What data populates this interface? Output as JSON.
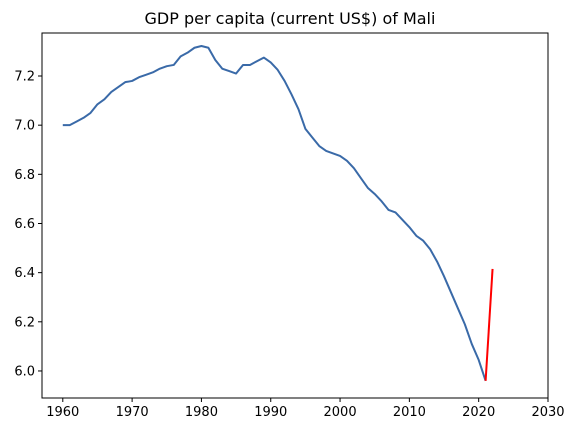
{
  "chart_data": {
    "type": "line",
    "title": "GDP per capita (current US$) of Mali",
    "xlabel": "",
    "ylabel": "",
    "xlim": [
      1957,
      2030
    ],
    "ylim": [
      5.89,
      7.375
    ],
    "x_ticks": [
      1960,
      1970,
      1980,
      1990,
      2000,
      2010,
      2020,
      2030
    ],
    "y_ticks": [
      6.0,
      6.2,
      6.4,
      6.6,
      6.8,
      7.0,
      7.2
    ],
    "x_tick_labels": [
      "1960",
      "1970",
      "1980",
      "1990",
      "2000",
      "2010",
      "2020",
      "2030"
    ],
    "y_tick_labels": [
      "6.0",
      "6.2",
      "6.4",
      "6.6",
      "6.8",
      "7.0",
      "7.2"
    ],
    "grid": false,
    "legend": "none",
    "series": [
      {
        "color": "#3a6aa8",
        "points": [
          [
            1960,
            7.0
          ],
          [
            1961,
            7.0
          ],
          [
            1962,
            7.015
          ],
          [
            1963,
            7.03
          ],
          [
            1964,
            7.05
          ],
          [
            1965,
            7.085
          ],
          [
            1966,
            7.105
          ],
          [
            1967,
            7.135
          ],
          [
            1968,
            7.155
          ],
          [
            1969,
            7.175
          ],
          [
            1970,
            7.18
          ],
          [
            1971,
            7.195
          ],
          [
            1972,
            7.205
          ],
          [
            1973,
            7.215
          ],
          [
            1974,
            7.23
          ],
          [
            1975,
            7.24
          ],
          [
            1976,
            7.245
          ],
          [
            1977,
            7.28
          ],
          [
            1978,
            7.295
          ],
          [
            1979,
            7.315
          ],
          [
            1980,
            7.322
          ],
          [
            1981,
            7.315
          ],
          [
            1982,
            7.265
          ],
          [
            1983,
            7.23
          ],
          [
            1984,
            7.22
          ],
          [
            1985,
            7.21
          ],
          [
            1986,
            7.245
          ],
          [
            1987,
            7.245
          ],
          [
            1988,
            7.26
          ],
          [
            1989,
            7.275
          ],
          [
            1990,
            7.255
          ],
          [
            1991,
            7.225
          ],
          [
            1992,
            7.18
          ],
          [
            1993,
            7.125
          ],
          [
            1994,
            7.065
          ],
          [
            1995,
            6.985
          ],
          [
            1996,
            6.95
          ],
          [
            1997,
            6.915
          ],
          [
            1998,
            6.895
          ],
          [
            1999,
            6.885
          ],
          [
            2000,
            6.875
          ],
          [
            2001,
            6.855
          ],
          [
            2002,
            6.825
          ],
          [
            2003,
            6.785
          ],
          [
            2004,
            6.745
          ],
          [
            2005,
            6.72
          ],
          [
            2006,
            6.69
          ],
          [
            2007,
            6.655
          ],
          [
            2008,
            6.645
          ],
          [
            2009,
            6.615
          ],
          [
            2010,
            6.585
          ],
          [
            2011,
            6.55
          ],
          [
            2012,
            6.53
          ],
          [
            2013,
            6.495
          ],
          [
            2014,
            6.445
          ],
          [
            2015,
            6.385
          ],
          [
            2016,
            6.32
          ],
          [
            2017,
            6.255
          ],
          [
            2018,
            6.19
          ],
          [
            2019,
            6.11
          ],
          [
            2020,
            6.045
          ],
          [
            2021,
            5.96
          ]
        ]
      },
      {
        "color": "#ff0000",
        "points": [
          [
            2021,
            5.96
          ],
          [
            2022,
            6.415
          ]
        ]
      }
    ]
  }
}
